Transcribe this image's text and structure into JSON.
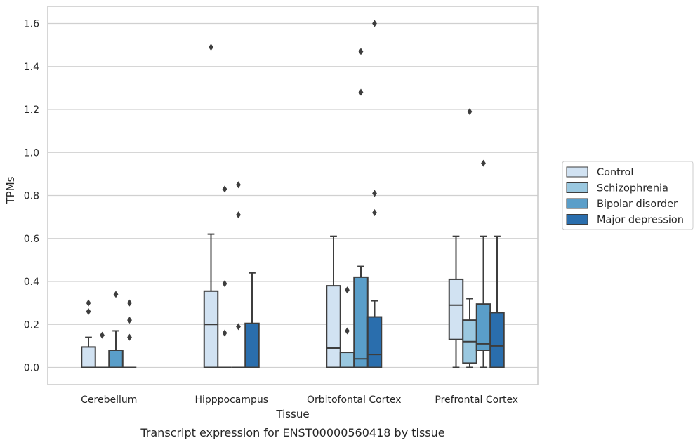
{
  "caption": "Transcript expression for ENST00000560418 by tissue",
  "chart_data": {
    "type": "box",
    "xlabel": "Tissue",
    "ylabel": "TPMs",
    "ylim": [
      -0.08,
      1.68
    ],
    "yticks": [
      "0.0",
      "0.2",
      "0.4",
      "0.6",
      "0.8",
      "1.0",
      "1.2",
      "1.4",
      "1.6"
    ],
    "grid": true,
    "legend_position": "right",
    "categories": [
      "Cerebellum",
      "Hipppocampus",
      "Orbitofontal Cortex",
      "Prefrontal Cortex"
    ],
    "series": [
      {
        "name": "Control",
        "color": "#d1e2f2",
        "boxes": [
          {
            "whislo": 0,
            "q1": 0,
            "med": 0,
            "q3": 0.095,
            "whishi": 0.14,
            "fliers": [
              0.26,
              0.3
            ]
          },
          {
            "whislo": 0,
            "q1": 0,
            "med": 0.2,
            "q3": 0.355,
            "whishi": 0.62,
            "fliers": [
              1.49
            ]
          },
          {
            "whislo": 0,
            "q1": 0,
            "med": 0.09,
            "q3": 0.38,
            "whishi": 0.61,
            "fliers": []
          },
          {
            "whislo": 0,
            "q1": 0.13,
            "med": 0.29,
            "q3": 0.41,
            "whishi": 0.61,
            "fliers": []
          }
        ]
      },
      {
        "name": "Schizophrenia",
        "color": "#9ac8e0",
        "boxes": [
          {
            "whislo": 0,
            "q1": 0,
            "med": 0,
            "q3": 0,
            "whishi": 0,
            "fliers": [
              0.15
            ]
          },
          {
            "whislo": 0,
            "q1": 0,
            "med": 0,
            "q3": 0,
            "whishi": 0,
            "fliers": [
              0.16,
              0.39,
              0.83
            ]
          },
          {
            "whislo": 0,
            "q1": 0,
            "med": 0,
            "q3": 0.07,
            "whishi": 0.07,
            "fliers": [
              0.17,
              0.36
            ]
          },
          {
            "whislo": 0,
            "q1": 0.02,
            "med": 0.12,
            "q3": 0.22,
            "whishi": 0.32,
            "fliers": [
              1.19
            ]
          }
        ]
      },
      {
        "name": "Bipolar disorder",
        "color": "#5a9ec9",
        "boxes": [
          {
            "whislo": 0,
            "q1": 0,
            "med": 0,
            "q3": 0.08,
            "whishi": 0.17,
            "fliers": [
              0.34
            ]
          },
          {
            "whislo": 0,
            "q1": 0,
            "med": 0,
            "q3": 0,
            "whishi": 0,
            "fliers": [
              0.19,
              0.71,
              0.85
            ]
          },
          {
            "whislo": 0,
            "q1": 0,
            "med": 0.04,
            "q3": 0.42,
            "whishi": 0.47,
            "fliers": [
              1.28,
              1.47
            ]
          },
          {
            "whislo": 0,
            "q1": 0.08,
            "med": 0.11,
            "q3": 0.295,
            "whishi": 0.61,
            "fliers": [
              0.95
            ]
          }
        ]
      },
      {
        "name": "Major depression",
        "color": "#2a6ead",
        "boxes": [
          {
            "whislo": 0,
            "q1": 0,
            "med": 0,
            "q3": 0,
            "whishi": 0,
            "fliers": [
              0.14,
              0.22,
              0.3
            ]
          },
          {
            "whislo": 0,
            "q1": 0,
            "med": 0,
            "q3": 0.205,
            "whishi": 0.44,
            "fliers": []
          },
          {
            "whislo": 0,
            "q1": 0,
            "med": 0.06,
            "q3": 0.235,
            "whishi": 0.31,
            "fliers": [
              0.72,
              0.81,
              1.6
            ]
          },
          {
            "whislo": 0,
            "q1": 0,
            "med": 0.1,
            "q3": 0.255,
            "whishi": 0.61,
            "fliers": []
          }
        ]
      }
    ]
  }
}
